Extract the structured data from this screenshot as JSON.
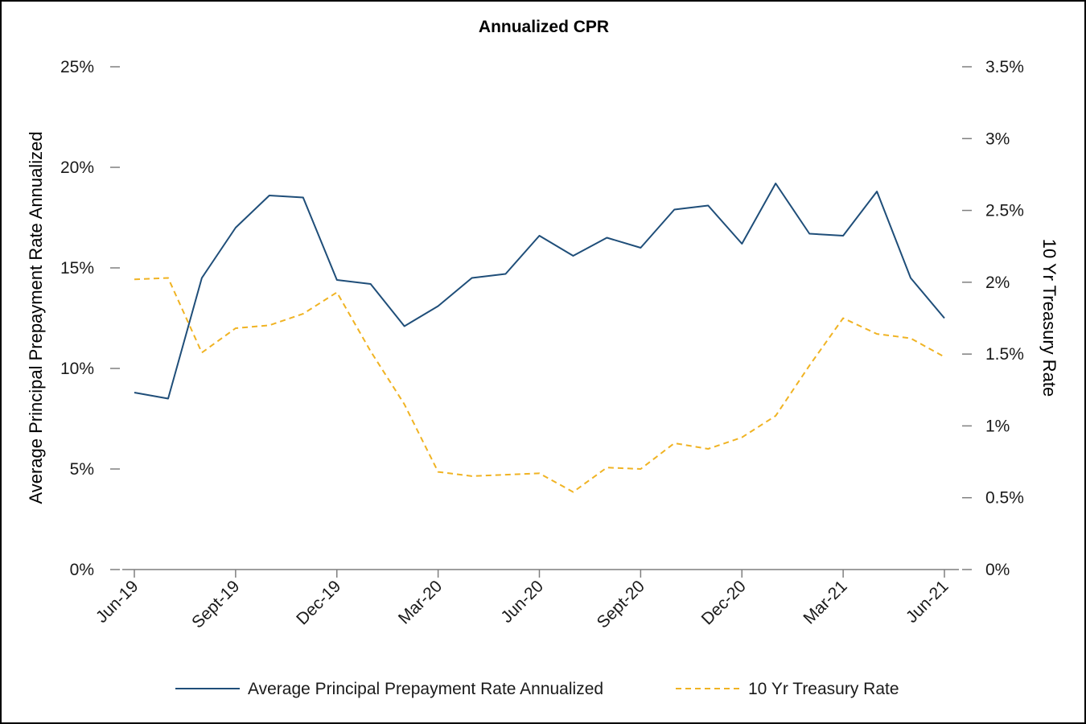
{
  "chart_data": {
    "type": "line",
    "title": "Annualized CPR",
    "categories": [
      "Jun-19",
      "Jul-19",
      "Aug-19",
      "Sept-19",
      "Oct-19",
      "Nov-19",
      "Dec-19",
      "Jan-20",
      "Feb-20",
      "Mar-20",
      "Apr-20",
      "May-20",
      "Jun-20",
      "Jul-20",
      "Aug-20",
      "Sept-20",
      "Oct-20",
      "Nov-20",
      "Dec-20",
      "Jan-21",
      "Feb-21",
      "Mar-21",
      "Apr-21",
      "May-21",
      "Jun-21"
    ],
    "x_tick_labels": [
      "Jun-19",
      "Sept-19",
      "Dec-19",
      "Mar-20",
      "Jun-20",
      "Sept-20",
      "Dec-20",
      "Mar-21",
      "Jun-21"
    ],
    "y_left": {
      "label": "Average Principal Prepayment Rate Annualized",
      "lim": [
        0,
        25
      ],
      "ticks": [
        0,
        5,
        10,
        15,
        20,
        25
      ],
      "tick_labels": [
        "0%",
        "5%",
        "10%",
        "15%",
        "20%",
        "25%"
      ]
    },
    "y_right": {
      "label": "10 Yr Treasury Rate",
      "lim": [
        0,
        3.5
      ],
      "ticks": [
        0,
        0.5,
        1,
        1.5,
        2,
        2.5,
        3,
        3.5
      ],
      "tick_labels": [
        "0%",
        "0.5%",
        "1%",
        "1.5%",
        "2%",
        "2.5%",
        "3%",
        "3.5%"
      ]
    },
    "series": [
      {
        "name": "Average Principal Prepayment Rate Annualized",
        "axis": "left",
        "style": "solid",
        "color": "#1f4e79",
        "values": [
          8.8,
          8.5,
          14.5,
          17.0,
          18.6,
          18.5,
          14.4,
          14.2,
          12.1,
          13.1,
          14.5,
          14.7,
          16.6,
          15.6,
          16.5,
          16.0,
          17.9,
          18.1,
          16.2,
          19.2,
          16.7,
          16.6,
          18.8,
          14.5,
          12.5
        ]
      },
      {
        "name": "10 Yr Treasury Rate",
        "axis": "right",
        "style": "dashed",
        "color": "#f0b323",
        "values": [
          2.02,
          2.03,
          1.51,
          1.68,
          1.7,
          1.78,
          1.93,
          1.52,
          1.15,
          0.68,
          0.65,
          0.66,
          0.67,
          0.54,
          0.71,
          0.7,
          0.88,
          0.84,
          0.92,
          1.07,
          1.42,
          1.75,
          1.64,
          1.61,
          1.48
        ]
      }
    ],
    "legend_position": "bottom",
    "grid": false
  }
}
